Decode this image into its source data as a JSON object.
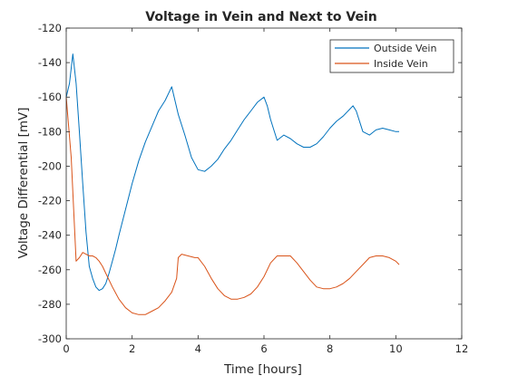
{
  "chart_data": {
    "type": "line",
    "title": "Voltage in Vein and Next to Vein",
    "xlabel": "Time [hours]",
    "ylabel": "Voltage Differential [mV]",
    "xlim": [
      0,
      12
    ],
    "ylim": [
      -300,
      -120
    ],
    "xticks": [
      0,
      2,
      4,
      6,
      8,
      10,
      12
    ],
    "yticks": [
      -300,
      -280,
      -260,
      -240,
      -220,
      -200,
      -180,
      -160,
      -140,
      -120
    ],
    "xtick_labels": [
      "0",
      "2",
      "4",
      "6",
      "8",
      "10",
      "12"
    ],
    "ytick_labels": [
      "-300",
      "-280",
      "-260",
      "-240",
      "-220",
      "-200",
      "-180",
      "-160",
      "-140",
      "-120"
    ],
    "grid": false,
    "legend_position": "top-right",
    "series": [
      {
        "name": "Outside Vein",
        "color": "#0072BD",
        "x": [
          0,
          0.1,
          0.2,
          0.3,
          0.4,
          0.5,
          0.6,
          0.7,
          0.8,
          0.9,
          1.0,
          1.1,
          1.2,
          1.3,
          1.4,
          1.5,
          1.6,
          1.8,
          2.0,
          2.2,
          2.4,
          2.6,
          2.8,
          3.0,
          3.2,
          3.4,
          3.6,
          3.8,
          4.0,
          4.2,
          4.4,
          4.6,
          4.8,
          5.0,
          5.2,
          5.4,
          5.6,
          5.8,
          6.0,
          6.1,
          6.2,
          6.4,
          6.6,
          6.8,
          7.0,
          7.2,
          7.4,
          7.6,
          7.8,
          8.0,
          8.2,
          8.4,
          8.6,
          8.7,
          8.8,
          9.0,
          9.2,
          9.4,
          9.6,
          9.8,
          10.0,
          10.1
        ],
        "y": [
          -160,
          -152,
          -135,
          -152,
          -180,
          -210,
          -238,
          -258,
          -265,
          -270,
          -272,
          -271,
          -268,
          -262,
          -255,
          -248,
          -240,
          -225,
          -210,
          -197,
          -186,
          -177,
          -168,
          -162,
          -154,
          -170,
          -182,
          -195,
          -202,
          -203,
          -200,
          -196,
          -190,
          -185,
          -179,
          -173,
          -168,
          -163,
          -160,
          -165,
          -173,
          -185,
          -182,
          -184,
          -187,
          -189,
          -189,
          -187,
          -183,
          -178,
          -174,
          -171,
          -167,
          -165,
          -168,
          -180,
          -182,
          -179,
          -178,
          -179,
          -180,
          -180
        ]
      },
      {
        "name": "Inside Vein",
        "color": "#D95319",
        "x": [
          0,
          0.15,
          0.3,
          0.4,
          0.5,
          0.6,
          0.7,
          0.8,
          0.9,
          1.0,
          1.1,
          1.2,
          1.4,
          1.6,
          1.8,
          2.0,
          2.2,
          2.4,
          2.6,
          2.8,
          3.0,
          3.2,
          3.35,
          3.4,
          3.5,
          3.7,
          3.9,
          4.0,
          4.2,
          4.4,
          4.6,
          4.8,
          5.0,
          5.2,
          5.4,
          5.6,
          5.8,
          6.0,
          6.2,
          6.4,
          6.6,
          6.8,
          7.0,
          7.2,
          7.4,
          7.6,
          7.8,
          8.0,
          8.2,
          8.4,
          8.6,
          8.8,
          9.0,
          9.2,
          9.4,
          9.6,
          9.8,
          10.0,
          10.1
        ],
        "y": [
          -160,
          -195,
          -255,
          -253,
          -250,
          -251,
          -252,
          -252,
          -253,
          -255,
          -258,
          -262,
          -270,
          -277,
          -282,
          -285,
          -286,
          -286,
          -284,
          -282,
          -278,
          -273,
          -265,
          -253,
          -251,
          -252,
          -253,
          -253,
          -258,
          -265,
          -271,
          -275,
          -277,
          -277,
          -276,
          -274,
          -270,
          -264,
          -256,
          -252,
          -252,
          -252,
          -256,
          -261,
          -266,
          -270,
          -271,
          -271,
          -270,
          -268,
          -265,
          -261,
          -257,
          -253,
          -252,
          -252,
          -253,
          -255,
          -257
        ]
      }
    ]
  }
}
